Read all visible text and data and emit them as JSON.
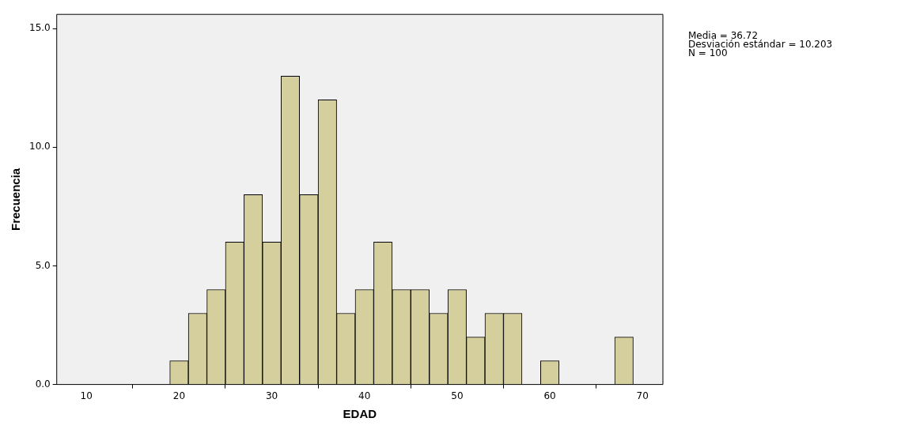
{
  "chart_data": {
    "type": "histogram",
    "xlabel": "EDAD",
    "ylabel": "Frecuencia",
    "bins": [
      19,
      21,
      23,
      25,
      27,
      29,
      31,
      33,
      35,
      37,
      39,
      41,
      43,
      45,
      47,
      49,
      51,
      53,
      55,
      57,
      59,
      61,
      63,
      65,
      67,
      69
    ],
    "values": [
      1,
      3,
      4,
      6,
      8,
      6,
      13,
      8,
      12,
      3,
      4,
      6,
      4,
      4,
      3,
      4,
      2,
      3,
      3,
      0,
      1,
      0,
      0,
      0,
      2
    ],
    "color": "#d4cf9c",
    "xlim": [
      6.8,
      72.2
    ],
    "xticks": [
      10,
      20,
      30,
      40,
      50,
      60,
      70
    ],
    "ylim": [
      0,
      15.6
    ],
    "yticks": [
      {
        "value": 0,
        "label": "0.0"
      },
      {
        "value": 5,
        "label": "5.0"
      },
      {
        "value": 10,
        "label": "10.0"
      },
      {
        "value": 15,
        "label": "15.0"
      }
    ],
    "grid": false,
    "legend": false,
    "annotations": [
      "Media = 36.72",
      "Desviación estándar = 10.203",
      "N = 100"
    ]
  }
}
